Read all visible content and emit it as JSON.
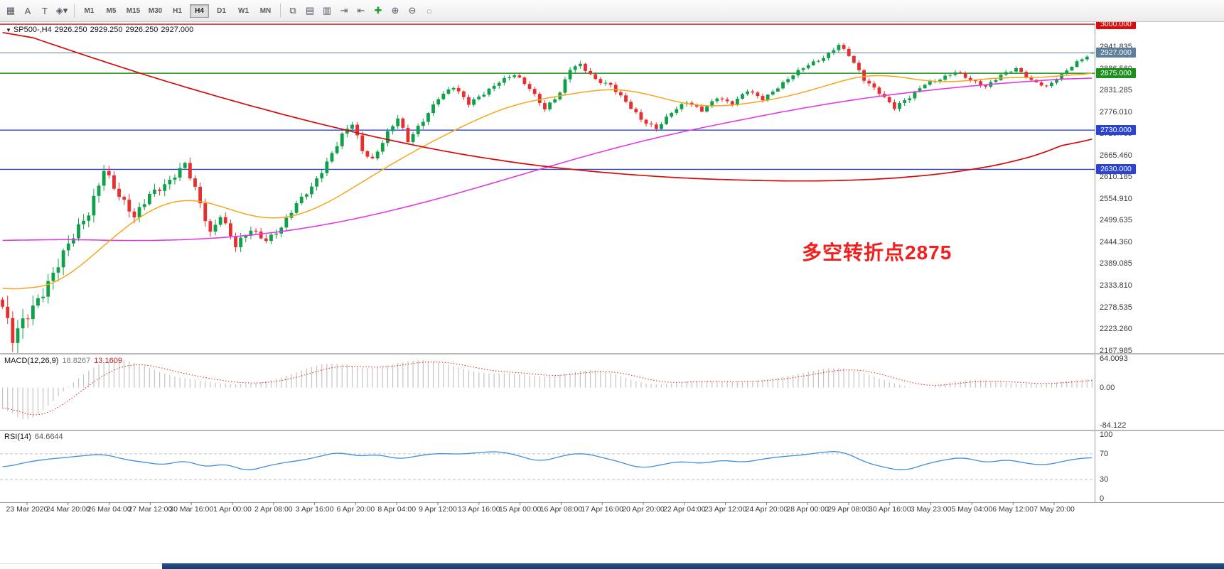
{
  "toolbar": {
    "left_icons": [
      {
        "name": "charts-grid-icon",
        "glyph": "▦"
      },
      {
        "name": "text-label-a-icon",
        "glyph": "A"
      },
      {
        "name": "text-tool-icon",
        "glyph": "T"
      },
      {
        "name": "shapes-dropdown-icon",
        "glyph": "◈▾"
      }
    ],
    "timeframes": [
      "M1",
      "M5",
      "M15",
      "M30",
      "H1",
      "H4",
      "D1",
      "W1",
      "MN"
    ],
    "active_timeframe": "H4",
    "right_icons": [
      {
        "name": "cascade-windows-icon",
        "glyph": "⧉"
      },
      {
        "name": "tile-windows-horizontal-icon",
        "glyph": "▤"
      },
      {
        "name": "tile-windows-vertical-icon",
        "glyph": "▥"
      },
      {
        "name": "chart-shift-icon",
        "glyph": "⇥"
      },
      {
        "name": "auto-scroll-icon",
        "glyph": "⇤"
      },
      {
        "name": "new-chart-icon",
        "glyph": "✚",
        "color": "#1d9e33"
      },
      {
        "name": "zoom-in-icon",
        "glyph": "⊕"
      },
      {
        "name": "zoom-out-icon",
        "glyph": "⊖"
      },
      {
        "name": "refresh-icon",
        "glyph": "◌"
      }
    ]
  },
  "chart": {
    "collapse_glyph": "▼",
    "symbol_period": "SP500-,H4",
    "open": "2926.250",
    "high": "2929.250",
    "low": "2926.250",
    "close": "2927.000"
  },
  "macd_panel": {
    "label": "MACD(12,26,9)",
    "main_value": "18.8267",
    "signal_value": "13.1609"
  },
  "rsi_panel": {
    "label": "RSI(14)",
    "value": "64.6644"
  },
  "chart_data": {
    "type": "candlestick",
    "symbol": "SP500-",
    "timeframe": "H4",
    "bars": 216,
    "last_ohlc": {
      "open": 2926.25,
      "high": 2929.25,
      "low": 2926.25,
      "close": 2927.0
    },
    "annotation": {
      "text": "多空转折点2875",
      "color": "#f21f1f"
    },
    "price_scale_ticks": [
      "2941.835",
      "2886.560",
      "2831.285",
      "2776.010",
      "2720.735",
      "2665.460",
      "2610.185",
      "2554.910",
      "2499.635",
      "2444.360",
      "2389.085",
      "2333.810",
      "2278.535",
      "2223.260",
      "2167.985"
    ],
    "price_levels": [
      {
        "label": "3000.000",
        "price": 3000.0,
        "color": "#dd0b0b",
        "style": "hline"
      },
      {
        "label": "2927.000",
        "price": 2927.0,
        "color": "#5f7d9c",
        "style": "bid"
      },
      {
        "label": "2875.000",
        "price": 2875.0,
        "color": "#1e8f1e",
        "style": "hline"
      },
      {
        "label": "2730.000",
        "price": 2730.0,
        "color": "#2b43cf",
        "style": "hline"
      },
      {
        "label": "2630.000",
        "price": 2630.0,
        "color": "#2b43cf",
        "style": "hline"
      }
    ],
    "time_labels": [
      "23 Mar 2020",
      "24 Mar 20:00",
      "26 Mar 04:00",
      "27 Mar 12:00",
      "30 Mar 16:00",
      "1 Apr 00:00",
      "2 Apr 08:00",
      "3 Apr 16:00",
      "6 Apr 20:00",
      "8 Apr 04:00",
      "9 Apr 12:00",
      "13 Apr 16:00",
      "15 Apr 00:00",
      "16 Apr 08:00",
      "17 Apr 16:00",
      "20 Apr 20:00",
      "22 Apr 04:00",
      "23 Apr 12:00",
      "24 Apr 20:00",
      "28 Apr 00:00",
      "29 Apr 08:00",
      "30 Apr 16:00",
      "3 May 23:00",
      "5 May 04:00",
      "6 May 12:00",
      "7 May 20:00"
    ],
    "price_path": [
      [
        0,
        2280,
        46
      ],
      [
        2,
        2192,
        46
      ],
      [
        5,
        2258,
        42
      ],
      [
        9,
        2345,
        38
      ],
      [
        13,
        2435,
        34
      ],
      [
        17,
        2520,
        30
      ],
      [
        20,
        2635,
        28
      ],
      [
        23,
        2560,
        26
      ],
      [
        26,
        2505,
        24
      ],
      [
        29,
        2570,
        24
      ],
      [
        33,
        2600,
        22
      ],
      [
        36,
        2640,
        22
      ],
      [
        38,
        2580,
        22
      ],
      [
        41,
        2470,
        22
      ],
      [
        43,
        2515,
        20
      ],
      [
        46,
        2432,
        22
      ],
      [
        49,
        2475,
        18
      ],
      [
        52,
        2452,
        18
      ],
      [
        55,
        2482,
        16
      ],
      [
        58,
        2540,
        16
      ],
      [
        61,
        2585,
        16
      ],
      [
        64,
        2650,
        18
      ],
      [
        67,
        2716,
        18
      ],
      [
        69,
        2745,
        16
      ],
      [
        71,
        2676,
        16
      ],
      [
        73,
        2656,
        14
      ],
      [
        76,
        2725,
        14
      ],
      [
        78,
        2760,
        14
      ],
      [
        80,
        2700,
        14
      ],
      [
        83,
        2755,
        14
      ],
      [
        86,
        2815,
        14
      ],
      [
        89,
        2840,
        12
      ],
      [
        92,
        2796,
        12
      ],
      [
        95,
        2825,
        12
      ],
      [
        98,
        2855,
        12
      ],
      [
        101,
        2870,
        12
      ],
      [
        104,
        2836,
        12
      ],
      [
        107,
        2786,
        12
      ],
      [
        110,
        2826,
        12
      ],
      [
        112,
        2885,
        14
      ],
      [
        114,
        2895,
        12
      ],
      [
        117,
        2860,
        12
      ],
      [
        120,
        2846,
        12
      ],
      [
        123,
        2800,
        12
      ],
      [
        126,
        2756,
        12
      ],
      [
        129,
        2736,
        12
      ],
      [
        132,
        2776,
        12
      ],
      [
        135,
        2800,
        10
      ],
      [
        138,
        2780,
        10
      ],
      [
        141,
        2815,
        10
      ],
      [
        144,
        2796,
        10
      ],
      [
        147,
        2830,
        10
      ],
      [
        150,
        2810,
        10
      ],
      [
        153,
        2840,
        10
      ],
      [
        156,
        2870,
        10
      ],
      [
        159,
        2896,
        10
      ],
      [
        162,
        2916,
        10
      ],
      [
        165,
        2948,
        10
      ],
      [
        167,
        2920,
        10
      ],
      [
        170,
        2858,
        12
      ],
      [
        173,
        2828,
        12
      ],
      [
        176,
        2788,
        12
      ],
      [
        179,
        2812,
        12
      ],
      [
        182,
        2848,
        10
      ],
      [
        185,
        2862,
        10
      ],
      [
        188,
        2878,
        10
      ],
      [
        191,
        2856,
        10
      ],
      [
        194,
        2842,
        10
      ],
      [
        197,
        2872,
        10
      ],
      [
        200,
        2886,
        8
      ],
      [
        203,
        2856,
        8
      ],
      [
        206,
        2842,
        8
      ],
      [
        209,
        2872,
        8
      ],
      [
        212,
        2902,
        8
      ],
      [
        214,
        2918,
        8
      ],
      [
        215,
        2927,
        6
      ]
    ],
    "ma_red": [
      [
        0,
        2992
      ],
      [
        15,
        2926
      ],
      [
        30,
        2863
      ],
      [
        45,
        2806
      ],
      [
        60,
        2754
      ],
      [
        75,
        2708
      ],
      [
        90,
        2669
      ],
      [
        105,
        2640
      ],
      [
        120,
        2620
      ],
      [
        135,
        2607
      ],
      [
        150,
        2601
      ],
      [
        160,
        2600
      ],
      [
        170,
        2603
      ],
      [
        180,
        2611
      ],
      [
        190,
        2626
      ],
      [
        200,
        2650
      ],
      [
        208,
        2682
      ],
      [
        215,
        2726
      ]
    ],
    "ma_magenta": [
      [
        0,
        2448
      ],
      [
        12,
        2452
      ],
      [
        24,
        2448
      ],
      [
        36,
        2450
      ],
      [
        48,
        2460
      ],
      [
        60,
        2480
      ],
      [
        72,
        2510
      ],
      [
        84,
        2548
      ],
      [
        96,
        2592
      ],
      [
        108,
        2638
      ],
      [
        120,
        2682
      ],
      [
        132,
        2720
      ],
      [
        144,
        2752
      ],
      [
        156,
        2782
      ],
      [
        168,
        2808
      ],
      [
        180,
        2828
      ],
      [
        192,
        2844
      ],
      [
        204,
        2856
      ],
      [
        215,
        2865
      ]
    ],
    "ma_orange": [
      [
        0,
        2338
      ],
      [
        4,
        2320
      ],
      [
        8,
        2322
      ],
      [
        12,
        2346
      ],
      [
        16,
        2388
      ],
      [
        20,
        2436
      ],
      [
        24,
        2483
      ],
      [
        28,
        2520
      ],
      [
        32,
        2548
      ],
      [
        36,
        2560
      ],
      [
        40,
        2552
      ],
      [
        44,
        2532
      ],
      [
        48,
        2512
      ],
      [
        52,
        2500
      ],
      [
        56,
        2503
      ],
      [
        60,
        2516
      ],
      [
        64,
        2542
      ],
      [
        68,
        2574
      ],
      [
        72,
        2606
      ],
      [
        76,
        2638
      ],
      [
        80,
        2668
      ],
      [
        84,
        2696
      ],
      [
        88,
        2722
      ],
      [
        92,
        2748
      ],
      [
        96,
        2772
      ],
      [
        100,
        2792
      ],
      [
        104,
        2806
      ],
      [
        108,
        2813
      ],
      [
        112,
        2820
      ],
      [
        116,
        2832
      ],
      [
        120,
        2838
      ],
      [
        124,
        2834
      ],
      [
        128,
        2820
      ],
      [
        132,
        2804
      ],
      [
        136,
        2792
      ],
      [
        140,
        2788
      ],
      [
        144,
        2792
      ],
      [
        148,
        2800
      ],
      [
        152,
        2808
      ],
      [
        156,
        2818
      ],
      [
        160,
        2832
      ],
      [
        164,
        2850
      ],
      [
        168,
        2866
      ],
      [
        172,
        2876
      ],
      [
        176,
        2870
      ],
      [
        180,
        2858
      ],
      [
        184,
        2850
      ],
      [
        188,
        2852
      ],
      [
        192,
        2858
      ],
      [
        196,
        2864
      ],
      [
        200,
        2867
      ],
      [
        204,
        2862
      ],
      [
        208,
        2863
      ],
      [
        212,
        2874
      ],
      [
        215,
        2886
      ]
    ],
    "macd": {
      "label": "MACD(12,26,9)",
      "main": 18.8267,
      "signal": 13.1609,
      "ticks": [
        "64.0093",
        "0.00",
        "-84.122"
      ],
      "main_points": [
        [
          0,
          -30
        ],
        [
          2,
          -62
        ],
        [
          4,
          -78
        ],
        [
          6,
          -70
        ],
        [
          8,
          -52
        ],
        [
          10,
          -30
        ],
        [
          12,
          -8
        ],
        [
          14,
          12
        ],
        [
          16,
          30
        ],
        [
          18,
          46
        ],
        [
          20,
          58
        ],
        [
          23,
          64
        ],
        [
          26,
          56
        ],
        [
          29,
          44
        ],
        [
          32,
          30
        ],
        [
          35,
          22
        ],
        [
          38,
          18
        ],
        [
          41,
          12
        ],
        [
          44,
          8
        ],
        [
          47,
          6
        ],
        [
          50,
          10
        ],
        [
          53,
          16
        ],
        [
          56,
          26
        ],
        [
          59,
          38
        ],
        [
          62,
          50
        ],
        [
          65,
          56
        ],
        [
          68,
          50
        ],
        [
          71,
          42
        ],
        [
          74,
          44
        ],
        [
          77,
          52
        ],
        [
          80,
          60
        ],
        [
          83,
          62
        ],
        [
          86,
          56
        ],
        [
          89,
          48
        ],
        [
          92,
          38
        ],
        [
          95,
          32
        ],
        [
          98,
          30
        ],
        [
          101,
          32
        ],
        [
          104,
          27
        ],
        [
          107,
          22
        ],
        [
          110,
          28
        ],
        [
          113,
          36
        ],
        [
          116,
          40
        ],
        [
          119,
          36
        ],
        [
          122,
          26
        ],
        [
          125,
          14
        ],
        [
          128,
          6
        ],
        [
          131,
          7
        ],
        [
          134,
          12
        ],
        [
          137,
          16
        ],
        [
          140,
          15
        ],
        [
          143,
          12
        ],
        [
          146,
          13
        ],
        [
          149,
          16
        ],
        [
          152,
          20
        ],
        [
          155,
          26
        ],
        [
          158,
          32
        ],
        [
          161,
          40
        ],
        [
          164,
          45
        ],
        [
          167,
          42
        ],
        [
          170,
          32
        ],
        [
          173,
          20
        ],
        [
          176,
          8
        ],
        [
          179,
          0
        ],
        [
          181,
          -3
        ],
        [
          184,
          4
        ],
        [
          187,
          12
        ],
        [
          190,
          17
        ],
        [
          193,
          17
        ],
        [
          196,
          14
        ],
        [
          199,
          10
        ],
        [
          202,
          7
        ],
        [
          205,
          7
        ],
        [
          208,
          12
        ],
        [
          211,
          16
        ],
        [
          214,
          19
        ],
        [
          215,
          18.8
        ]
      ]
    },
    "rsi": {
      "label": "RSI(14)",
      "value": 64.6644,
      "ticks": [
        "100",
        "70",
        "30",
        "0"
      ],
      "levels": [
        70,
        30
      ],
      "points": [
        [
          0,
          48
        ],
        [
          4,
          56
        ],
        [
          8,
          61
        ],
        [
          12,
          64
        ],
        [
          16,
          67
        ],
        [
          20,
          70
        ],
        [
          24,
          61
        ],
        [
          28,
          57
        ],
        [
          32,
          52
        ],
        [
          36,
          61
        ],
        [
          40,
          48
        ],
        [
          44,
          56
        ],
        [
          48,
          42
        ],
        [
          52,
          51
        ],
        [
          56,
          57
        ],
        [
          60,
          61
        ],
        [
          64,
          69
        ],
        [
          67,
          73
        ],
        [
          70,
          65
        ],
        [
          74,
          70
        ],
        [
          78,
          61
        ],
        [
          82,
          67
        ],
        [
          86,
          71
        ],
        [
          90,
          69
        ],
        [
          94,
          72
        ],
        [
          98,
          74
        ],
        [
          102,
          67
        ],
        [
          106,
          57
        ],
        [
          110,
          66
        ],
        [
          114,
          72
        ],
        [
          118,
          65
        ],
        [
          122,
          57
        ],
        [
          126,
          47
        ],
        [
          130,
          53
        ],
        [
          134,
          59
        ],
        [
          138,
          54
        ],
        [
          142,
          61
        ],
        [
          146,
          56
        ],
        [
          150,
          62
        ],
        [
          154,
          66
        ],
        [
          158,
          68
        ],
        [
          162,
          73
        ],
        [
          166,
          74
        ],
        [
          170,
          57
        ],
        [
          174,
          49
        ],
        [
          178,
          43
        ],
        [
          182,
          54
        ],
        [
          186,
          61
        ],
        [
          190,
          65
        ],
        [
          194,
          55
        ],
        [
          198,
          62
        ],
        [
          202,
          55
        ],
        [
          206,
          52
        ],
        [
          210,
          60
        ],
        [
          214,
          64
        ],
        [
          215,
          64.66
        ]
      ]
    },
    "colors": {
      "up": "#0fa04a",
      "down": "#e82f2f",
      "ma_red": "#d60a0a",
      "ma_magenta": "#e23ae2",
      "ma_orange": "#f7a51b",
      "macd_hist": "#c4c4c4",
      "macd_signal": "#e02020",
      "rsi": "#3f8fde",
      "bid_line": "#5f7d9c"
    }
  }
}
